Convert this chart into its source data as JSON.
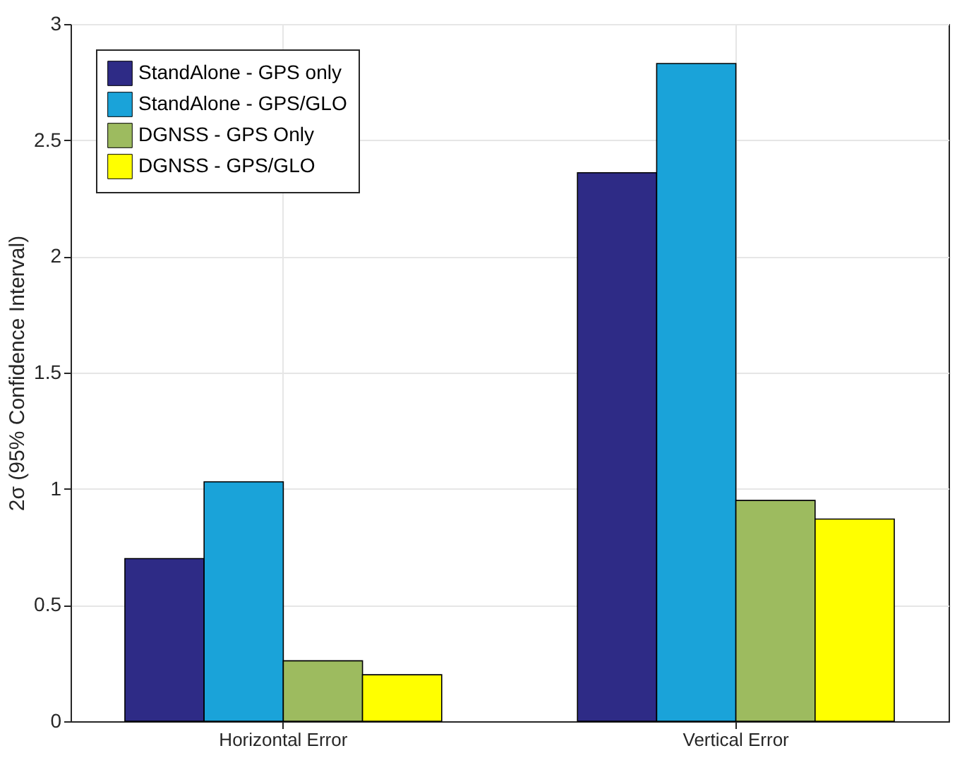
{
  "chart_data": {
    "type": "bar",
    "ylabel": "2σ (95% Confidence Interval)",
    "categories": [
      "Horizontal Error",
      "Vertical Error"
    ],
    "series": [
      {
        "name": "StandAlone - GPS only",
        "color": "#2e2b86",
        "values": [
          0.7,
          2.36
        ]
      },
      {
        "name": "StandAlone - GPS/GLO",
        "color": "#1aa3d9",
        "values": [
          1.03,
          2.83
        ]
      },
      {
        "name": "DGNSS - GPS Only",
        "color": "#9dbb5f",
        "values": [
          0.26,
          0.95
        ]
      },
      {
        "name": "DGNSS - GPS/GLO",
        "color": "#ffff00",
        "values": [
          0.2,
          0.87
        ]
      }
    ],
    "ylim": [
      0,
      3
    ],
    "yticks": [
      0,
      0.5,
      1,
      1.5,
      2,
      2.5,
      3
    ],
    "grid": true,
    "legend": "top left"
  }
}
